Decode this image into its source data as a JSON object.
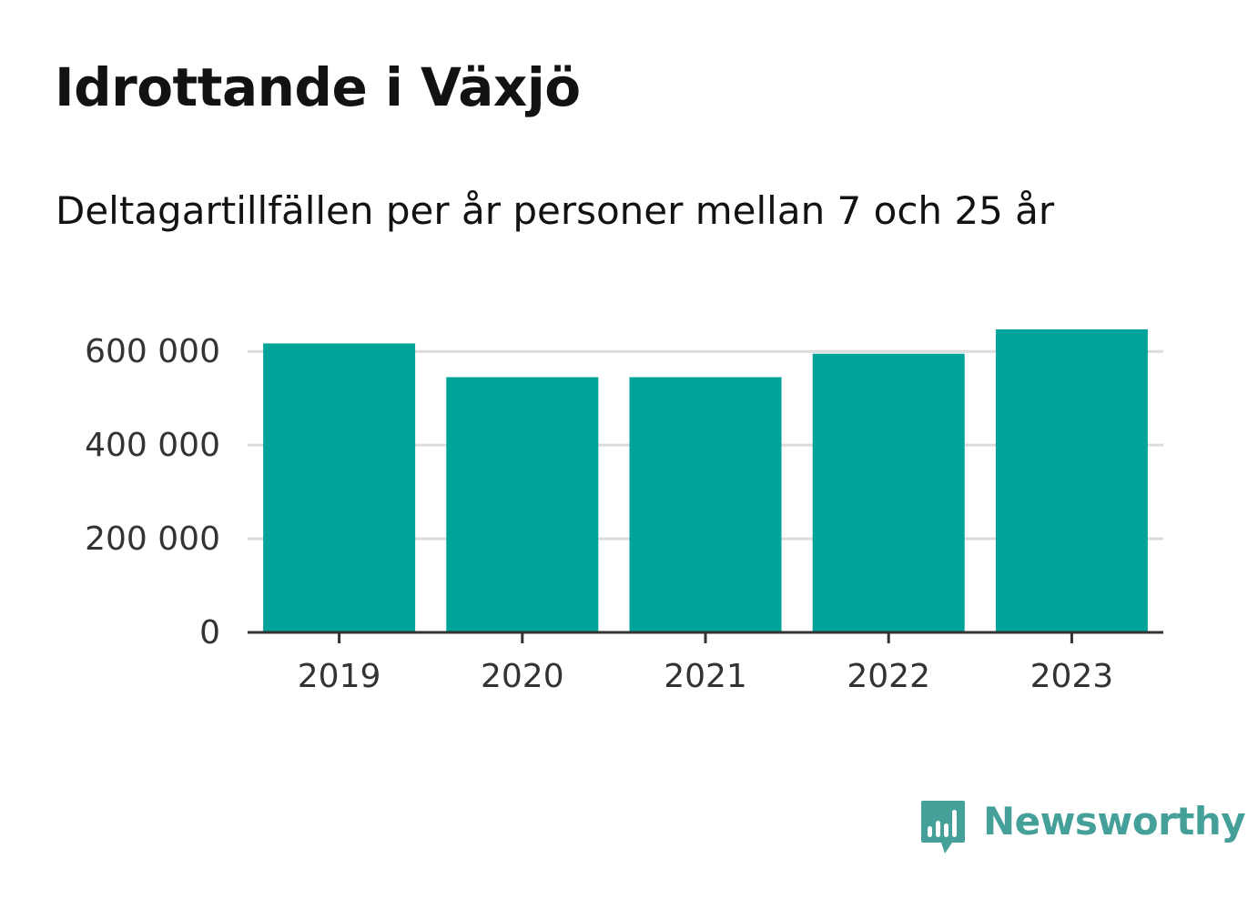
{
  "title": "Idrottande i Växjö",
  "subtitle": "Deltagartillfällen per år personer mellan 7 och 25 år",
  "brand": {
    "name": "Newsworthy",
    "icon": "newsworthy-logo-icon",
    "color": "#46a09a"
  },
  "chart_data": {
    "type": "bar",
    "categories": [
      "2019",
      "2020",
      "2021",
      "2022",
      "2023"
    ],
    "values": [
      617000,
      545000,
      545000,
      595000,
      647000
    ],
    "ylim": [
      0,
      647000
    ],
    "yticks": [
      0,
      200000,
      400000,
      600000
    ],
    "ytick_labels": [
      "0",
      "200 000",
      "400 000",
      "600 000"
    ],
    "xlabel": "",
    "ylabel": "",
    "grid": true,
    "bar_color": "#00a39a"
  }
}
